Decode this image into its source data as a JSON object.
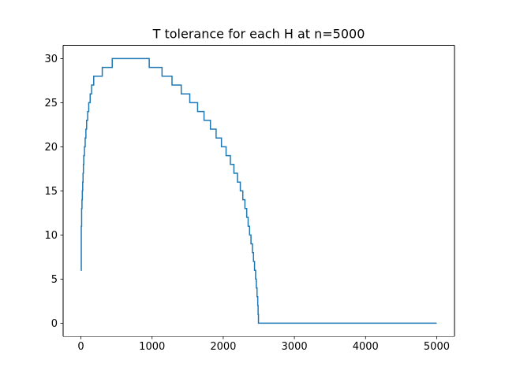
{
  "chart_data": {
    "type": "line",
    "title": "T tolerance for each H at n=5000",
    "xlabel": "",
    "ylabel": "",
    "xlim": [
      -250,
      5250
    ],
    "ylim": [
      -1.5,
      31.5
    ],
    "xticks": [
      0,
      1000,
      2000,
      3000,
      4000,
      5000
    ],
    "yticks": [
      0,
      5,
      10,
      15,
      20,
      25,
      30
    ],
    "grid": false,
    "colors": {
      "line": "#1f77b4",
      "axes": "#000000",
      "background": "#ffffff"
    },
    "series": [
      {
        "step": "post",
        "x": [
          1,
          5,
          10,
          15,
          20,
          25,
          30,
          35,
          40,
          50,
          60,
          70,
          80,
          95,
          110,
          130,
          150,
          180,
          210,
          250,
          300,
          360,
          440,
          960,
          1140,
          1280,
          1410,
          1530,
          1640,
          1730,
          1820,
          1900,
          1975,
          2040,
          2100,
          2150,
          2200,
          2240,
          2275,
          2305,
          2330,
          2350,
          2370,
          2390,
          2410,
          2425,
          2440,
          2455,
          2465,
          2475,
          2485,
          2490,
          2495,
          5000
        ],
        "y": [
          6,
          11,
          13,
          14,
          15,
          16,
          17,
          18,
          19,
          20,
          21,
          22,
          23,
          24,
          25,
          26,
          27,
          28,
          28,
          28,
          29,
          29,
          30,
          29,
          28,
          27,
          26,
          25,
          24,
          23,
          22,
          21,
          20,
          19,
          18,
          17,
          16,
          15,
          14,
          13,
          12,
          11,
          10,
          9,
          8,
          7,
          6,
          5,
          4,
          3,
          2,
          1,
          0,
          0
        ]
      }
    ]
  }
}
